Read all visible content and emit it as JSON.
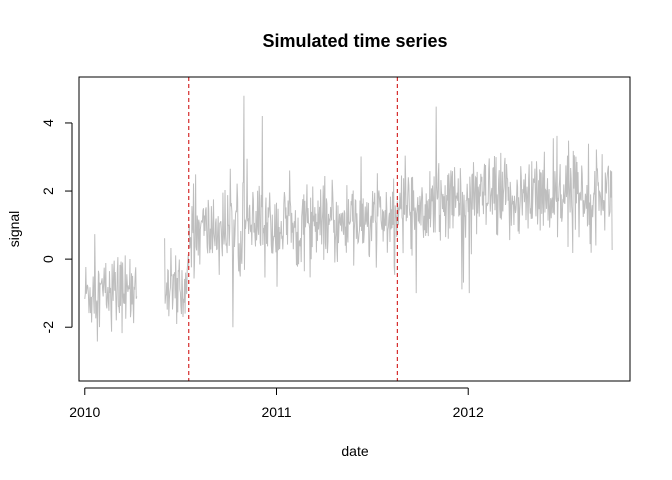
{
  "chart_data": {
    "type": "line",
    "title": "Simulated time series",
    "xlabel": "date",
    "ylabel": "signal",
    "x_ticks": [
      "2010",
      "2011",
      "2012"
    ],
    "y_ticks": [
      -2,
      0,
      2,
      4
    ],
    "xlim": [
      "2009-12-21",
      "2012-11-04"
    ],
    "ylim": [
      -3.58,
      5.35
    ],
    "grid": false,
    "legend": "none",
    "colors": {
      "series": "#bebebe",
      "changepoints": "#cd0000",
      "axes": "#000000"
    },
    "changepoints": [
      "2010-07-18",
      "2011-08-19"
    ],
    "series": [
      {
        "segments": [
          {
            "start": "2010-01-01",
            "end": "2010-04-10",
            "level_start": -1.0,
            "level_end": -0.9,
            "spread": 0.55,
            "min": -3.2,
            "max": 1.4
          },
          {
            "start": "2010-06-01",
            "end": "2010-07-18",
            "level_start": -1.0,
            "level_end": -0.9,
            "spread": 0.55,
            "min": -2.5,
            "max": 0.6
          },
          {
            "start": "2010-07-18",
            "end": "2011-08-19",
            "level_start": 0.8,
            "level_end": 1.1,
            "spread": 0.6,
            "min": -2.0,
            "max": 4.8
          },
          {
            "start": "2011-08-19",
            "end": "2012-10-01",
            "level_start": 1.6,
            "level_end": 2.0,
            "spread": 0.6,
            "min": -1.0,
            "max": 5.05
          }
        ]
      }
    ]
  }
}
